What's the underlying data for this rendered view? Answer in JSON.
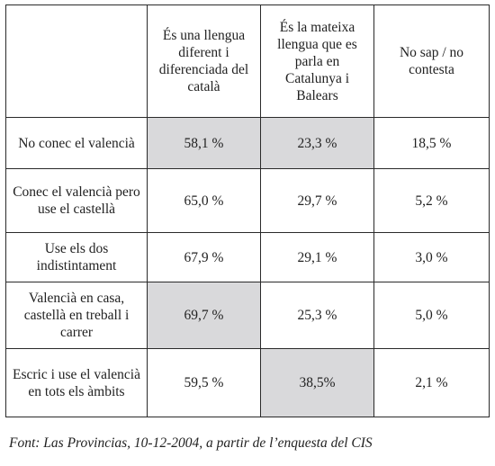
{
  "table": {
    "headers": [
      "",
      "És una llengua diferent i diferenciada del català",
      "És la mateixa llengua que es parla en Catalunya i Balears",
      "No sap / no contesta"
    ],
    "rows": [
      {
        "label": "No conec el valencià",
        "cells": [
          {
            "value": "58,1 %",
            "highlighted": true
          },
          {
            "value": "23,3 %",
            "highlighted": true
          },
          {
            "value": "18,5 %",
            "highlighted": false
          }
        ]
      },
      {
        "label": "Conec el valencià pero use el castellà",
        "cells": [
          {
            "value": "65,0 %",
            "highlighted": false
          },
          {
            "value": "29,7 %",
            "highlighted": false
          },
          {
            "value": "5,2 %",
            "highlighted": false
          }
        ]
      },
      {
        "label": "Use els dos indistintament",
        "cells": [
          {
            "value": "67,9 %",
            "highlighted": false
          },
          {
            "value": "29,1 %",
            "highlighted": false
          },
          {
            "value": "3,0 %",
            "highlighted": false
          }
        ]
      },
      {
        "label": "Valencià en casa, castellà en treball i carrer",
        "cells": [
          {
            "value": "69,7 %",
            "highlighted": true
          },
          {
            "value": "25,3 %",
            "highlighted": false
          },
          {
            "value": "5,0 %",
            "highlighted": false
          }
        ]
      },
      {
        "label": "Escric i use el valencià en tots els àmbits",
        "cells": [
          {
            "value": "59,5 %",
            "highlighted": false
          },
          {
            "value": "38,5%",
            "highlighted": true
          },
          {
            "value": "2,1 %",
            "highlighted": false
          }
        ]
      }
    ]
  },
  "source": "Font: Las Provincias, 10-12-2004, a partir de l’enquesta del CIS",
  "colors": {
    "highlight": "#d9d9db",
    "border": "#2a2a2a",
    "text": "#222222"
  }
}
